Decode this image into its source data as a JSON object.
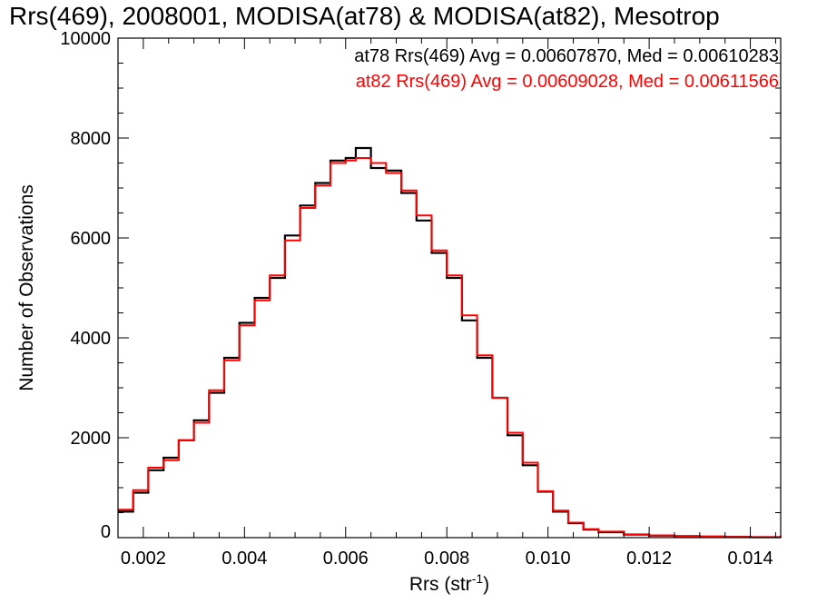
{
  "chart_data": {
    "type": "line",
    "title": "Rrs(469), 2008001, MODISA(at78) & MODISA(at82), Mesotrop",
    "xlabel": "Rrs (str",
    "xlabel_sup": "-1",
    "xlabel_close": ")",
    "ylabel": "Number of Observations",
    "xlim": [
      0.0015,
      0.0146
    ],
    "ylim": [
      0,
      10000
    ],
    "grid": false,
    "x_ticks": [
      0.002,
      0.004,
      0.006,
      0.008,
      0.01,
      0.012,
      0.014
    ],
    "x_tick_labels": [
      "0.002",
      "0.004",
      "0.006",
      "0.008",
      "0.010",
      "0.012",
      "0.014"
    ],
    "y_ticks": [
      0,
      2000,
      4000,
      6000,
      8000,
      10000
    ],
    "y_tick_labels": [
      "0",
      "2000",
      "4000",
      "6000",
      "8000",
      "10000"
    ],
    "annotations": [
      {
        "text": "at78 Rrs(469) Avg = 0.00607870, Med = 0.00610283",
        "color": "#000000"
      },
      {
        "text": "at82 Rrs(469) Avg = 0.00609028, Med = 0.00611566",
        "color": "#ff0000"
      }
    ],
    "series": [
      {
        "color": "#000000",
        "x": [
          0.0015,
          0.0018,
          0.0021,
          0.0024,
          0.0027,
          0.003,
          0.0033,
          0.0036,
          0.0039,
          0.0042,
          0.0045,
          0.0048,
          0.0051,
          0.0054,
          0.0057,
          0.006,
          0.0062,
          0.0065,
          0.0068,
          0.0071,
          0.0074,
          0.0077,
          0.008,
          0.0083,
          0.0086,
          0.0089,
          0.0092,
          0.0095,
          0.0098,
          0.0101,
          0.0104,
          0.0107,
          0.011,
          0.0115,
          0.012,
          0.0125,
          0.013,
          0.0135,
          0.014,
          0.0146
        ],
        "y": [
          520,
          900,
          1350,
          1600,
          1950,
          2350,
          2900,
          3600,
          4300,
          4800,
          5200,
          6050,
          6650,
          7100,
          7550,
          7600,
          7800,
          7400,
          7350,
          6900,
          6350,
          5700,
          5200,
          4350,
          3600,
          2800,
          2050,
          1450,
          920,
          520,
          290,
          160,
          110,
          60,
          40,
          30,
          20,
          15,
          10,
          5
        ]
      },
      {
        "color": "#ff0000",
        "x": [
          0.0015,
          0.0018,
          0.0021,
          0.0024,
          0.0027,
          0.003,
          0.0033,
          0.0036,
          0.0039,
          0.0042,
          0.0045,
          0.0048,
          0.0051,
          0.0054,
          0.0057,
          0.006,
          0.0062,
          0.0065,
          0.0068,
          0.0071,
          0.0074,
          0.0077,
          0.008,
          0.0083,
          0.0086,
          0.0089,
          0.0092,
          0.0095,
          0.0098,
          0.0101,
          0.0104,
          0.0107,
          0.011,
          0.0115,
          0.012,
          0.0125,
          0.013,
          0.0135,
          0.014,
          0.0146
        ],
        "y": [
          560,
          950,
          1400,
          1550,
          1950,
          2300,
          2950,
          3550,
          4250,
          4750,
          5250,
          5950,
          6600,
          7050,
          7500,
          7550,
          7600,
          7500,
          7300,
          6950,
          6450,
          5750,
          5250,
          4450,
          3650,
          2800,
          2100,
          1500,
          930,
          540,
          300,
          170,
          120,
          65,
          45,
          30,
          20,
          15,
          10,
          5
        ]
      }
    ]
  }
}
